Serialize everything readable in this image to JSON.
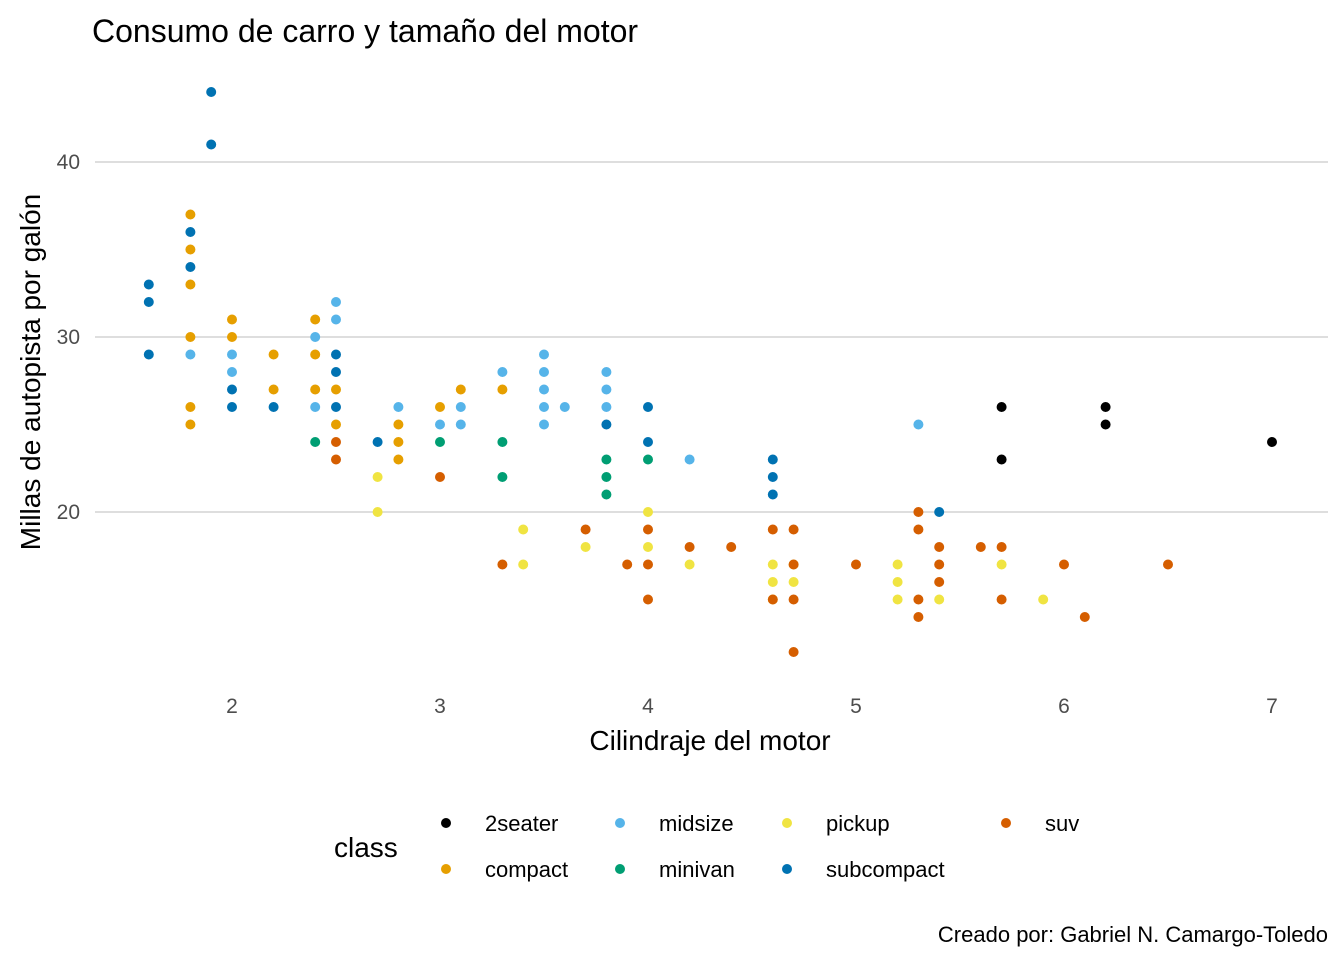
{
  "chart_data": {
    "type": "scatter",
    "title": "Consumo de carro y tamaño del motor",
    "xlabel": "Cilindraje del motor",
    "ylabel": "Millas de autopista por galón",
    "caption": "Creado por: Gabriel N. Camargo-Toledo",
    "xlim": [
      1.6,
      7.0
    ],
    "ylim": [
      12,
      44
    ],
    "x_ticks": [
      "2",
      "3",
      "4",
      "5",
      "6",
      "7"
    ],
    "y_ticks": [
      "20",
      "30",
      "40"
    ],
    "grid": "horizontal",
    "legend": {
      "title": "class",
      "position": "bottom",
      "entries": [
        "2seater",
        "compact",
        "midsize",
        "minivan",
        "pickup",
        "subcompact",
        "suv"
      ]
    },
    "colors": {
      "2seater": "#000000",
      "compact": "#E69F00",
      "midsize": "#56B4E9",
      "minivan": "#009E73",
      "pickup": "#F0E442",
      "subcompact": "#0072B2",
      "suv": "#D55E00"
    },
    "series": [
      {
        "name": "2seater",
        "points": [
          [
            5.7,
            26
          ],
          [
            5.7,
            23
          ],
          [
            6.2,
            26
          ],
          [
            6.2,
            25
          ],
          [
            7.0,
            24
          ]
        ]
      },
      {
        "name": "compact",
        "points": [
          [
            1.8,
            37
          ],
          [
            1.8,
            35
          ],
          [
            1.8,
            33
          ],
          [
            1.8,
            30
          ],
          [
            1.8,
            26
          ],
          [
            1.8,
            25
          ],
          [
            2.0,
            31
          ],
          [
            2.0,
            30
          ],
          [
            2.2,
            29
          ],
          [
            2.2,
            27
          ],
          [
            2.4,
            31
          ],
          [
            2.4,
            29
          ],
          [
            2.4,
            27
          ],
          [
            2.5,
            27
          ],
          [
            2.5,
            25
          ],
          [
            2.8,
            25
          ],
          [
            2.8,
            24
          ],
          [
            2.8,
            23
          ],
          [
            3.0,
            26
          ],
          [
            3.1,
            27
          ],
          [
            3.3,
            27
          ]
        ]
      },
      {
        "name": "midsize",
        "points": [
          [
            1.8,
            29
          ],
          [
            2.0,
            29
          ],
          [
            2.0,
            28
          ],
          [
            2.4,
            30
          ],
          [
            2.4,
            26
          ],
          [
            2.5,
            32
          ],
          [
            2.5,
            31
          ],
          [
            2.8,
            26
          ],
          [
            3.0,
            25
          ],
          [
            3.1,
            26
          ],
          [
            3.1,
            25
          ],
          [
            3.3,
            28
          ],
          [
            3.5,
            29
          ],
          [
            3.5,
            28
          ],
          [
            3.5,
            27
          ],
          [
            3.5,
            26
          ],
          [
            3.5,
            25
          ],
          [
            3.6,
            26
          ],
          [
            3.8,
            28
          ],
          [
            3.8,
            27
          ],
          [
            3.8,
            26
          ],
          [
            4.2,
            23
          ],
          [
            5.3,
            25
          ]
        ]
      },
      {
        "name": "minivan",
        "points": [
          [
            2.4,
            24
          ],
          [
            3.0,
            24
          ],
          [
            3.3,
            24
          ],
          [
            3.3,
            22
          ],
          [
            3.8,
            23
          ],
          [
            3.8,
            22
          ],
          [
            3.8,
            21
          ],
          [
            4.0,
            23
          ]
        ]
      },
      {
        "name": "pickup",
        "points": [
          [
            2.7,
            22
          ],
          [
            2.7,
            20
          ],
          [
            3.4,
            19
          ],
          [
            3.4,
            17
          ],
          [
            3.7,
            18
          ],
          [
            4.0,
            20
          ],
          [
            4.0,
            18
          ],
          [
            4.2,
            17
          ],
          [
            4.6,
            17
          ],
          [
            4.6,
            16
          ],
          [
            4.6,
            15
          ],
          [
            4.7,
            17
          ],
          [
            4.7,
            16
          ],
          [
            5.2,
            17
          ],
          [
            5.2,
            16
          ],
          [
            5.2,
            15
          ],
          [
            5.4,
            15
          ],
          [
            5.7,
            17
          ],
          [
            5.9,
            15
          ]
        ]
      },
      {
        "name": "subcompact",
        "points": [
          [
            1.6,
            33
          ],
          [
            1.6,
            32
          ],
          [
            1.6,
            29
          ],
          [
            1.8,
            36
          ],
          [
            1.8,
            34
          ],
          [
            1.9,
            44
          ],
          [
            1.9,
            41
          ],
          [
            2.0,
            27
          ],
          [
            2.0,
            26
          ],
          [
            2.2,
            26
          ],
          [
            2.5,
            29
          ],
          [
            2.5,
            28
          ],
          [
            2.5,
            26
          ],
          [
            2.7,
            24
          ],
          [
            3.8,
            25
          ],
          [
            4.0,
            26
          ],
          [
            4.0,
            24
          ],
          [
            4.6,
            23
          ],
          [
            4.6,
            22
          ],
          [
            4.6,
            21
          ],
          [
            5.4,
            20
          ]
        ]
      },
      {
        "name": "suv",
        "points": [
          [
            2.5,
            24
          ],
          [
            2.5,
            23
          ],
          [
            3.0,
            22
          ],
          [
            3.3,
            17
          ],
          [
            3.7,
            19
          ],
          [
            3.9,
            17
          ],
          [
            4.0,
            19
          ],
          [
            4.0,
            17
          ],
          [
            4.0,
            15
          ],
          [
            4.2,
            18
          ],
          [
            4.4,
            18
          ],
          [
            4.6,
            19
          ],
          [
            4.6,
            15
          ],
          [
            4.7,
            19
          ],
          [
            4.7,
            17
          ],
          [
            4.7,
            15
          ],
          [
            4.7,
            12
          ],
          [
            5.0,
            17
          ],
          [
            5.3,
            20
          ],
          [
            5.3,
            19
          ],
          [
            5.3,
            15
          ],
          [
            5.3,
            14
          ],
          [
            5.4,
            18
          ],
          [
            5.4,
            17
          ],
          [
            5.4,
            16
          ],
          [
            5.6,
            18
          ],
          [
            5.7,
            18
          ],
          [
            5.7,
            15
          ],
          [
            6.0,
            17
          ],
          [
            6.1,
            14
          ],
          [
            6.5,
            17
          ]
        ]
      }
    ]
  }
}
